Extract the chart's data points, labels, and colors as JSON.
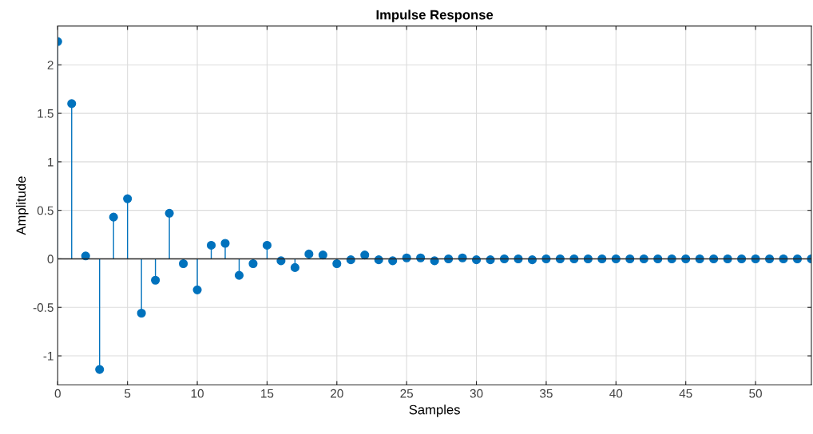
{
  "chart_data": {
    "type": "lollipop",
    "title": "Impulse Response",
    "xlabel": "Samples",
    "ylabel": "Amplitude",
    "x": [
      0,
      1,
      2,
      3,
      4,
      5,
      6,
      7,
      8,
      9,
      10,
      11,
      12,
      13,
      14,
      15,
      16,
      17,
      18,
      19,
      20,
      21,
      22,
      23,
      24,
      25,
      26,
      27,
      28,
      29,
      30,
      31,
      32,
      33,
      34,
      35,
      36,
      37,
      38,
      39,
      40,
      41,
      42,
      43,
      44,
      45,
      46,
      47,
      48,
      49,
      50,
      51,
      52,
      53,
      54
    ],
    "series": [
      {
        "color": "#0072bd",
        "values": [
          2.24,
          1.6,
          0.03,
          -1.14,
          0.43,
          0.62,
          -0.56,
          -0.22,
          0.47,
          -0.05,
          -0.32,
          0.14,
          0.16,
          -0.17,
          -0.05,
          0.14,
          -0.02,
          -0.09,
          0.05,
          0.04,
          -0.05,
          -0.01,
          0.04,
          -0.01,
          -0.02,
          0.01,
          0.01,
          -0.02,
          0,
          0.01,
          -0.01,
          -0.01,
          0,
          0,
          -0.01,
          0,
          0,
          0,
          0,
          0,
          0,
          0,
          0,
          0,
          0,
          0,
          0,
          0,
          0,
          0,
          0,
          0,
          0,
          0,
          0
        ]
      }
    ],
    "xlim": [
      0,
      54
    ],
    "ylim": [
      -1.3,
      2.4
    ],
    "xticks": [
      0,
      5,
      10,
      15,
      20,
      25,
      30,
      35,
      40,
      45,
      50
    ],
    "yticks": [
      -1,
      -0.5,
      0,
      0.5,
      1,
      1.5,
      2
    ],
    "grid": true,
    "marker": "circle",
    "line_style": "solid"
  }
}
